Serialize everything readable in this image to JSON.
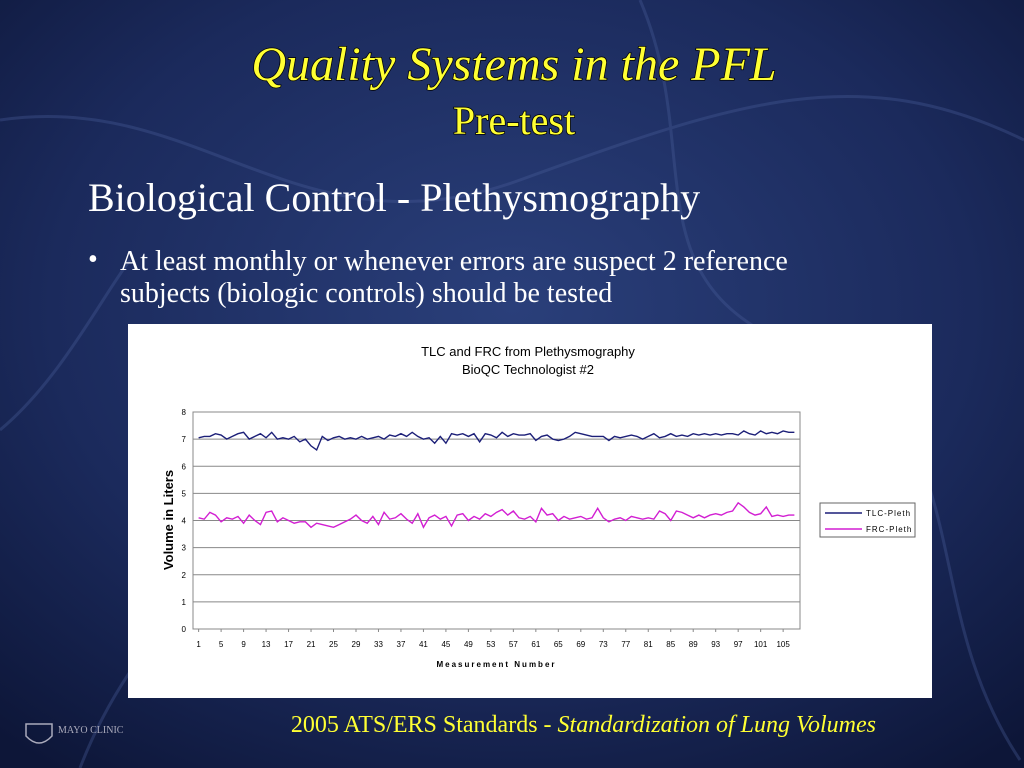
{
  "slide": {
    "title": "Quality Systems in the PFL",
    "subtitle": "Pre-test",
    "heading": "Biological Control - Plethysmography",
    "bullet_lines": [
      "At least monthly or whenever errors are suspect 2 reference",
      "subjects (biologic controls) should be tested"
    ],
    "footer_plain": "2005 ATS/ERS Standards - ",
    "footer_italic": "Standardization of Lung Volumes",
    "logo": "MAYO CLINIC"
  },
  "chart_data": {
    "type": "line",
    "title_lines": [
      "TLC and FRC from Plethysmography",
      "BioQC Technologist #2"
    ],
    "xlabel": "Measurement Number",
    "ylabel": "Volume in Liters",
    "x": [
      1,
      2,
      3,
      4,
      5,
      6,
      7,
      8,
      9,
      10,
      11,
      12,
      13,
      14,
      15,
      16,
      17,
      18,
      19,
      20,
      21,
      22,
      23,
      24,
      25,
      26,
      27,
      28,
      29,
      30,
      31,
      32,
      33,
      34,
      35,
      36,
      37,
      38,
      39,
      40,
      41,
      42,
      43,
      44,
      45,
      46,
      47,
      48,
      49,
      50,
      51,
      52,
      53,
      54,
      55,
      56,
      57,
      58,
      59,
      60,
      61,
      62,
      63,
      64,
      65,
      66,
      67,
      68,
      69,
      70,
      71,
      72,
      73,
      74,
      75,
      76,
      77,
      78,
      79,
      80,
      81,
      82,
      83,
      84,
      85,
      86,
      87,
      88,
      89,
      90,
      91,
      92,
      93,
      94,
      95,
      96,
      97,
      98,
      99,
      100,
      101,
      102,
      103,
      104,
      105,
      106,
      107
    ],
    "xlim": [
      0,
      108
    ],
    "xticks": [
      1,
      5,
      9,
      13,
      17,
      21,
      25,
      29,
      33,
      37,
      41,
      45,
      49,
      53,
      57,
      61,
      65,
      69,
      73,
      77,
      81,
      85,
      89,
      93,
      97,
      101,
      105
    ],
    "ylim": [
      0,
      8
    ],
    "yticks": [
      0,
      1,
      2,
      3,
      4,
      5,
      6,
      7,
      8
    ],
    "grid": true,
    "legend": "right",
    "series": [
      {
        "name": "TLC-Pleth",
        "color": "#1c1f78",
        "values": [
          7.05,
          7.1,
          7.1,
          7.2,
          7.15,
          7.0,
          7.1,
          7.2,
          7.25,
          7.0,
          7.1,
          7.2,
          7.05,
          7.25,
          7.0,
          7.05,
          7.0,
          7.1,
          6.9,
          7.0,
          6.75,
          6.6,
          7.1,
          6.95,
          7.05,
          7.1,
          7.0,
          7.05,
          7.0,
          7.1,
          7.0,
          7.05,
          7.1,
          7.0,
          7.15,
          7.1,
          7.2,
          7.1,
          7.25,
          7.1,
          7.0,
          7.05,
          6.85,
          7.1,
          6.85,
          7.2,
          7.15,
          7.2,
          7.1,
          7.2,
          6.9,
          7.2,
          7.15,
          7.05,
          7.25,
          7.1,
          7.2,
          7.15,
          7.15,
          7.2,
          6.95,
          7.1,
          7.15,
          7.0,
          6.95,
          7.0,
          7.1,
          7.25,
          7.2,
          7.15,
          7.1,
          7.1,
          7.1,
          6.95,
          7.1,
          7.05,
          7.1,
          7.15,
          7.1,
          7.0,
          7.1,
          7.2,
          7.05,
          7.1,
          7.2,
          7.1,
          7.15,
          7.1,
          7.2,
          7.15,
          7.2,
          7.15,
          7.2,
          7.15,
          7.2,
          7.2,
          7.15,
          7.3,
          7.2,
          7.15,
          7.3,
          7.2,
          7.25,
          7.2,
          7.3,
          7.25,
          7.25
        ]
      },
      {
        "name": "FRC-Pleth",
        "color": "#d21fd2",
        "values": [
          4.1,
          4.05,
          4.3,
          4.2,
          3.95,
          4.1,
          4.05,
          4.15,
          3.9,
          4.2,
          4.0,
          3.85,
          4.3,
          4.35,
          3.95,
          4.1,
          4.0,
          3.9,
          3.95,
          3.95,
          3.75,
          3.9,
          3.85,
          3.8,
          3.75,
          3.85,
          3.95,
          4.05,
          4.2,
          4.0,
          3.9,
          4.15,
          3.85,
          4.3,
          4.05,
          4.1,
          4.25,
          4.05,
          3.9,
          4.25,
          3.75,
          4.1,
          4.2,
          4.05,
          4.15,
          3.8,
          4.2,
          4.25,
          4.0,
          4.15,
          4.05,
          4.25,
          4.15,
          4.3,
          4.4,
          4.2,
          4.35,
          4.1,
          4.05,
          4.15,
          3.95,
          4.45,
          4.2,
          4.25,
          4.0,
          4.15,
          4.05,
          4.1,
          4.15,
          4.05,
          4.1,
          4.45,
          4.1,
          3.95,
          4.05,
          4.1,
          4.0,
          4.15,
          4.1,
          4.05,
          4.1,
          4.05,
          4.35,
          4.25,
          4.0,
          4.35,
          4.3,
          4.2,
          4.1,
          4.2,
          4.1,
          4.2,
          4.25,
          4.2,
          4.3,
          4.35,
          4.65,
          4.5,
          4.3,
          4.2,
          4.25,
          4.5,
          4.15,
          4.2,
          4.15,
          4.2,
          4.2
        ]
      }
    ]
  }
}
